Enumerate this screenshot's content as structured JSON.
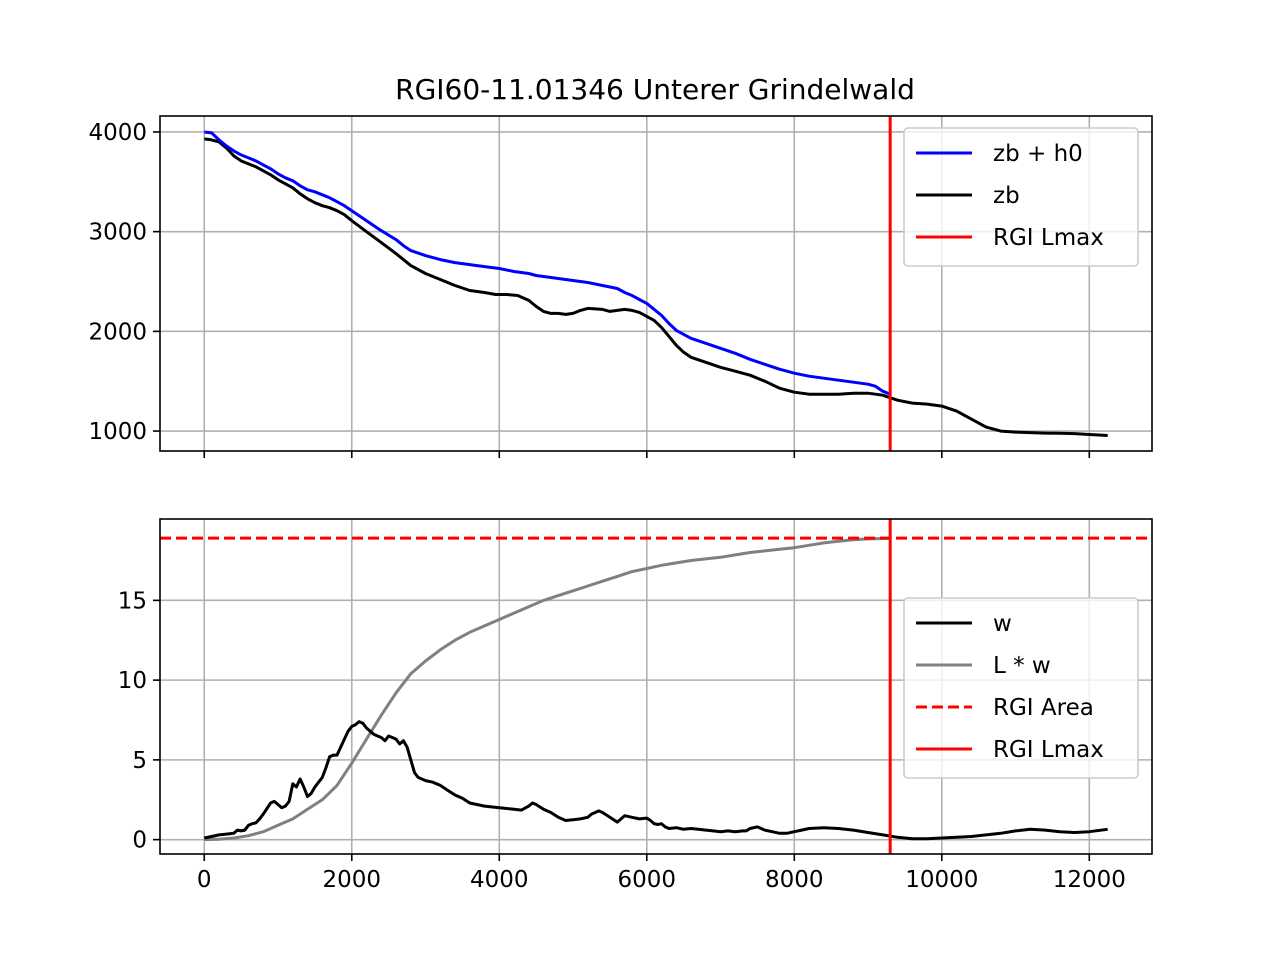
{
  "chart_data": [
    {
      "type": "line",
      "title": "RGI60-11.01346 Unterer Grindelwald",
      "xlabel": "",
      "ylabel": "",
      "xlim": [
        -600,
        12850
      ],
      "ylim": [
        800,
        4160
      ],
      "xticks": [
        0,
        2000,
        4000,
        6000,
        8000,
        10000,
        12000
      ],
      "xtick_labels_visible": false,
      "yticks": [
        1000,
        2000,
        3000,
        4000
      ],
      "ytick_labels": [
        "1000",
        "2000",
        "3000",
        "4000"
      ],
      "grid": true,
      "legend": {
        "position": "top-right",
        "entries": [
          "zb + h0",
          "zb",
          "RGI Lmax"
        ]
      },
      "series": [
        {
          "name": "zb + h0",
          "color": "#0000ff",
          "x": [
            0,
            100,
            200,
            300,
            400,
            500,
            600,
            700,
            800,
            900,
            1000,
            1100,
            1200,
            1300,
            1400,
            1500,
            1600,
            1700,
            1800,
            1900,
            2000,
            2200,
            2400,
            2600,
            2700,
            2800,
            3000,
            3200,
            3400,
            3600,
            3800,
            4000,
            4200,
            4400,
            4500,
            4600,
            4800,
            5000,
            5200,
            5400,
            5600,
            5700,
            5800,
            5900,
            6000,
            6100,
            6200,
            6300,
            6400,
            6600,
            6800,
            7000,
            7200,
            7400,
            7600,
            7800,
            8000,
            8200,
            8400,
            8600,
            8800,
            9000,
            9100,
            9200,
            9300
          ],
          "y": [
            4000,
            3990,
            3920,
            3860,
            3810,
            3770,
            3740,
            3710,
            3670,
            3630,
            3580,
            3540,
            3510,
            3460,
            3420,
            3400,
            3370,
            3340,
            3300,
            3260,
            3210,
            3110,
            3010,
            2920,
            2860,
            2810,
            2760,
            2720,
            2690,
            2670,
            2650,
            2630,
            2600,
            2580,
            2560,
            2550,
            2530,
            2510,
            2490,
            2460,
            2430,
            2390,
            2360,
            2320,
            2280,
            2220,
            2160,
            2080,
            2010,
            1930,
            1880,
            1830,
            1780,
            1720,
            1670,
            1620,
            1580,
            1550,
            1530,
            1510,
            1490,
            1470,
            1450,
            1400,
            1370
          ]
        },
        {
          "name": "zb",
          "color": "#000000",
          "x": [
            0,
            100,
            200,
            300,
            400,
            500,
            600,
            700,
            800,
            900,
            1000,
            1100,
            1200,
            1300,
            1400,
            1500,
            1600,
            1700,
            1800,
            1900,
            2000,
            2200,
            2400,
            2600,
            2700,
            2800,
            3000,
            3200,
            3400,
            3600,
            3800,
            3950,
            4100,
            4250,
            4400,
            4500,
            4600,
            4700,
            4800,
            4900,
            5000,
            5100,
            5200,
            5400,
            5500,
            5600,
            5700,
            5800,
            5900,
            6000,
            6100,
            6200,
            6300,
            6400,
            6500,
            6600,
            6800,
            7000,
            7200,
            7400,
            7600,
            7800,
            8000,
            8200,
            8400,
            8600,
            8800,
            9000,
            9200,
            9400,
            9600,
            9800,
            10000,
            10200,
            10400,
            10600,
            10800,
            11000,
            11200,
            11400,
            11600,
            11800,
            12000,
            12250
          ],
          "y": [
            3930,
            3920,
            3900,
            3840,
            3760,
            3710,
            3680,
            3650,
            3610,
            3570,
            3520,
            3480,
            3440,
            3380,
            3330,
            3290,
            3260,
            3240,
            3210,
            3170,
            3110,
            3000,
            2890,
            2780,
            2720,
            2660,
            2580,
            2520,
            2460,
            2410,
            2390,
            2370,
            2370,
            2360,
            2310,
            2250,
            2200,
            2180,
            2180,
            2170,
            2180,
            2210,
            2230,
            2220,
            2200,
            2210,
            2220,
            2210,
            2190,
            2150,
            2110,
            2040,
            1950,
            1860,
            1790,
            1740,
            1690,
            1640,
            1600,
            1560,
            1500,
            1430,
            1390,
            1370,
            1370,
            1370,
            1380,
            1380,
            1360,
            1310,
            1280,
            1270,
            1250,
            1200,
            1120,
            1040,
            1000,
            990,
            985,
            980,
            978,
            975,
            965,
            955
          ]
        }
      ],
      "vlines": [
        {
          "name": "RGI Lmax",
          "x": 9300,
          "color": "#ff0000",
          "style": "solid"
        }
      ]
    },
    {
      "type": "line",
      "xlabel": "",
      "ylabel": "",
      "xlim": [
        -600,
        12850
      ],
      "ylim": [
        -0.9,
        20.1
      ],
      "xticks": [
        0,
        2000,
        4000,
        6000,
        8000,
        10000,
        12000
      ],
      "xtick_labels": [
        "0",
        "2000",
        "4000",
        "6000",
        "8000",
        "10000",
        "12000"
      ],
      "yticks": [
        0,
        5,
        10,
        15
      ],
      "ytick_labels": [
        "0",
        "5",
        "10",
        "15"
      ],
      "grid": true,
      "legend": {
        "position": "center-right",
        "entries": [
          "w",
          "L * w",
          "RGI Area",
          "RGI Lmax"
        ]
      },
      "series": [
        {
          "name": "w",
          "color": "#000000",
          "x": [
            0,
            100,
            200,
            300,
            400,
            450,
            500,
            550,
            600,
            650,
            700,
            750,
            800,
            900,
            950,
            1000,
            1050,
            1100,
            1150,
            1200,
            1250,
            1300,
            1350,
            1400,
            1450,
            1500,
            1550,
            1600,
            1650,
            1700,
            1750,
            1800,
            1850,
            1900,
            1950,
            2000,
            2050,
            2100,
            2150,
            2200,
            2250,
            2300,
            2350,
            2400,
            2450,
            2500,
            2550,
            2600,
            2650,
            2700,
            2750,
            2800,
            2850,
            2900,
            3000,
            3100,
            3200,
            3300,
            3400,
            3500,
            3600,
            3800,
            4000,
            4200,
            4300,
            4400,
            4450,
            4500,
            4600,
            4700,
            4800,
            4900,
            5000,
            5100,
            5200,
            5250,
            5300,
            5350,
            5400,
            5500,
            5600,
            5650,
            5700,
            5800,
            5900,
            6000,
            6050,
            6100,
            6150,
            6200,
            6250,
            6300,
            6400,
            6500,
            6600,
            6700,
            6800,
            6900,
            7000,
            7100,
            7200,
            7300,
            7350,
            7400,
            7500,
            7600,
            7700,
            7800,
            7900,
            8000,
            8100,
            8200,
            8400,
            8600,
            8800,
            9000,
            9200,
            9400,
            9600,
            9800,
            10000,
            10200,
            10400,
            10600,
            10800,
            11000,
            11200,
            11400,
            11600,
            11800,
            12000,
            12250
          ],
          "y": [
            0.1,
            0.2,
            0.3,
            0.35,
            0.4,
            0.6,
            0.55,
            0.6,
            0.9,
            1.0,
            1.05,
            1.3,
            1.6,
            2.3,
            2.4,
            2.2,
            2.0,
            2.1,
            2.4,
            3.5,
            3.3,
            3.8,
            3.3,
            2.7,
            2.9,
            3.3,
            3.6,
            3.9,
            4.5,
            5.2,
            5.3,
            5.3,
            5.8,
            6.3,
            6.8,
            7.1,
            7.2,
            7.4,
            7.3,
            7.0,
            6.8,
            6.6,
            6.5,
            6.4,
            6.2,
            6.5,
            6.4,
            6.3,
            6.0,
            6.2,
            5.8,
            5.0,
            4.2,
            3.9,
            3.7,
            3.6,
            3.4,
            3.1,
            2.8,
            2.6,
            2.3,
            2.1,
            2.0,
            1.9,
            1.85,
            2.1,
            2.3,
            2.2,
            1.9,
            1.7,
            1.4,
            1.2,
            1.25,
            1.3,
            1.4,
            1.6,
            1.7,
            1.8,
            1.7,
            1.4,
            1.1,
            1.3,
            1.5,
            1.4,
            1.3,
            1.35,
            1.2,
            1.0,
            0.95,
            1.0,
            0.8,
            0.7,
            0.75,
            0.65,
            0.7,
            0.65,
            0.6,
            0.55,
            0.5,
            0.55,
            0.5,
            0.55,
            0.55,
            0.7,
            0.8,
            0.6,
            0.5,
            0.4,
            0.4,
            0.5,
            0.6,
            0.7,
            0.75,
            0.7,
            0.6,
            0.45,
            0.3,
            0.15,
            0.05,
            0.05,
            0.1,
            0.15,
            0.2,
            0.3,
            0.4,
            0.55,
            0.65,
            0.6,
            0.5,
            0.45,
            0.5,
            0.65
          ]
        },
        {
          "name": "L * w",
          "color": "#808080",
          "x": [
            0,
            200,
            400,
            600,
            800,
            1000,
            1200,
            1400,
            1600,
            1800,
            2000,
            2200,
            2400,
            2600,
            2800,
            3000,
            3200,
            3400,
            3600,
            3800,
            4000,
            4200,
            4400,
            4600,
            4800,
            5000,
            5200,
            5400,
            5600,
            5800,
            6000,
            6200,
            6400,
            6600,
            6800,
            7000,
            7200,
            7400,
            7600,
            7800,
            8000,
            8200,
            8400,
            8600,
            8800,
            9000,
            9200,
            9300
          ],
          "y": [
            0.0,
            0.03,
            0.1,
            0.25,
            0.5,
            0.9,
            1.3,
            1.9,
            2.5,
            3.4,
            4.8,
            6.3,
            7.8,
            9.2,
            10.4,
            11.2,
            11.9,
            12.5,
            13.0,
            13.4,
            13.8,
            14.2,
            14.6,
            15.0,
            15.3,
            15.6,
            15.9,
            16.2,
            16.5,
            16.8,
            17.0,
            17.2,
            17.35,
            17.5,
            17.6,
            17.7,
            17.85,
            18.0,
            18.1,
            18.2,
            18.3,
            18.45,
            18.6,
            18.7,
            18.8,
            18.85,
            18.88,
            18.9
          ]
        }
      ],
      "hlines": [
        {
          "name": "RGI Area",
          "y": 18.9,
          "color": "#ff0000",
          "style": "dashed"
        }
      ],
      "vlines": [
        {
          "name": "RGI Lmax",
          "x": 9300,
          "color": "#ff0000",
          "style": "solid"
        }
      ]
    }
  ]
}
